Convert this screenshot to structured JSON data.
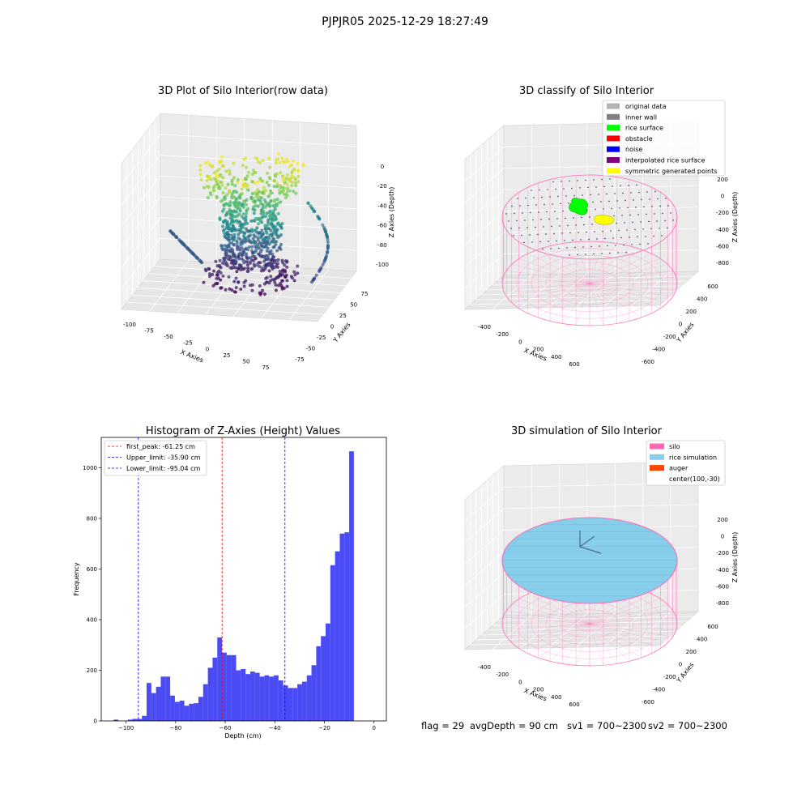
{
  "suptitle": "PJPJR05 2025-12-29 18:27:49",
  "panel_raw": {
    "title": "3D Plot of Silo Interior(row data)",
    "xlabel": "X Axies",
    "ylabel": "Y Axies",
    "zlabel": "Z Axies (Depth)",
    "xticks": [
      "-100",
      "-75",
      "-50",
      "-25",
      "0",
      "25",
      "50",
      "75"
    ],
    "yticks": [
      "75",
      "50",
      "25",
      "0",
      "-25",
      "-50",
      "-75"
    ],
    "zticks": [
      "0",
      "-20",
      "-40",
      "-60",
      "-80",
      "-100"
    ],
    "colormap": "viridis"
  },
  "panel_classify": {
    "title": "3D classify of Silo Interior",
    "xlabel": "X Axies",
    "ylabel": "Y Axies",
    "zlabel": "Z Axies (Depth)",
    "xticks": [
      "-400",
      "-200",
      "0",
      "200",
      "400",
      "600"
    ],
    "yticks": [
      "600",
      "400",
      "200",
      "0",
      "-200",
      "-400",
      "-600"
    ],
    "zticks": [
      "200",
      "0",
      "-200",
      "-400",
      "-600",
      "-800"
    ],
    "legend": [
      {
        "label": "original data",
        "color": "#b4b4b4"
      },
      {
        "label": "inner wall",
        "color": "#808080"
      },
      {
        "label": "rice surface",
        "color": "#00ff00"
      },
      {
        "label": "obstacle",
        "color": "#ff0000"
      },
      {
        "label": "noise",
        "color": "#0000ff"
      },
      {
        "label": "interpolated rice surface",
        "color": "#800080"
      },
      {
        "label": "symmetric generated points",
        "color": "#ffff00"
      }
    ]
  },
  "panel_sim": {
    "title": "3D simulation of Silo Interior",
    "xlabel": "X Axies",
    "ylabel": "Y Axies",
    "zlabel": "Z Axies (Depth)",
    "xticks": [
      "-400",
      "-200",
      "0",
      "200",
      "400",
      "600"
    ],
    "yticks": [
      "600",
      "400",
      "200",
      "0",
      "-200",
      "-400",
      "-600"
    ],
    "zticks": [
      "200",
      "0",
      "-200",
      "-400",
      "-600",
      "-800"
    ],
    "legend": [
      {
        "label": "silo",
        "color": "#ff69b4"
      },
      {
        "label": "rice simulation",
        "color": "#87ceeb"
      },
      {
        "label": "auger",
        "color": "#ff4500"
      },
      {
        "label": "center(100,-30)",
        "color": ""
      }
    ]
  },
  "footer": {
    "flag": "flag = 29",
    "avg": "avgDepth = 90 cm",
    "sv1": "sv1 = 700~2300",
    "sv2": "sv2 = 700~2300"
  },
  "chart_data": {
    "type": "bar",
    "title": "Histogram of Z-Axies (Height) Values",
    "xlabel": "Depth (cm)",
    "ylabel": "Frequency",
    "xlim": [
      -110,
      5
    ],
    "ylim": [
      0,
      1120
    ],
    "xticks": [
      -100,
      -80,
      -60,
      -40,
      -20,
      0
    ],
    "yticks": [
      0,
      200,
      400,
      600,
      800,
      1000
    ],
    "bin_edges_start": -105,
    "bin_width": 1.9,
    "values": [
      5,
      0,
      0,
      5,
      8,
      8,
      20,
      150,
      110,
      135,
      175,
      175,
      100,
      75,
      80,
      60,
      68,
      70,
      95,
      145,
      210,
      250,
      330,
      270,
      260,
      260,
      200,
      205,
      185,
      195,
      190,
      175,
      180,
      175,
      180,
      160,
      140,
      130,
      130,
      145,
      155,
      180,
      220,
      295,
      335,
      385,
      615,
      670,
      740,
      745,
      1065
    ],
    "bar_color": "#4b4bf5",
    "lines": [
      {
        "label": "first_peak: -61.25 cm",
        "x": -61.25,
        "color": "#ff0000"
      },
      {
        "label": "Upper_limit: -35.90 cm",
        "x": -35.9,
        "color": "#0000ff"
      },
      {
        "label": "Lower_limit: -95.04 cm",
        "x": -95.04,
        "color": "#0000ff"
      }
    ]
  }
}
